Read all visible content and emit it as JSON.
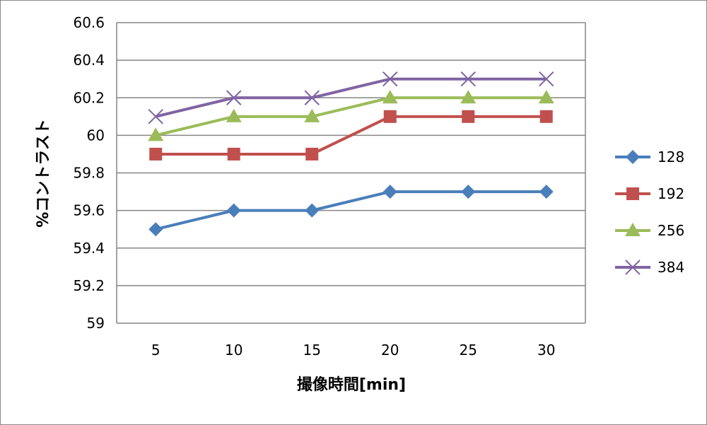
{
  "chart_data": {
    "type": "line",
    "title": "",
    "xlabel": "撮像時間[min]",
    "ylabel": "%コントラスト",
    "categories": [
      "5",
      "10",
      "15",
      "20",
      "25",
      "30"
    ],
    "ylim": [
      59,
      60.6
    ],
    "yticks": [
      "59",
      "59.2",
      "59.4",
      "59.6",
      "59.8",
      "60",
      "60.2",
      "60.4",
      "60.6"
    ],
    "grid": true,
    "legend_position": "right",
    "series": [
      {
        "name": "128",
        "marker": "diamond",
        "color": "#4A7EBB",
        "values": [
          59.5,
          59.6,
          59.6,
          59.7,
          59.7,
          59.7
        ]
      },
      {
        "name": "192",
        "marker": "square",
        "color": "#C0504D",
        "values": [
          59.9,
          59.9,
          59.9,
          60.1,
          60.1,
          60.1
        ]
      },
      {
        "name": "256",
        "marker": "triangle",
        "color": "#9BBB59",
        "values": [
          60.0,
          60.1,
          60.1,
          60.2,
          60.2,
          60.2
        ]
      },
      {
        "name": "384",
        "marker": "x",
        "color": "#8064A2",
        "values": [
          60.1,
          60.2,
          60.2,
          60.3,
          60.3,
          60.3
        ]
      }
    ]
  }
}
